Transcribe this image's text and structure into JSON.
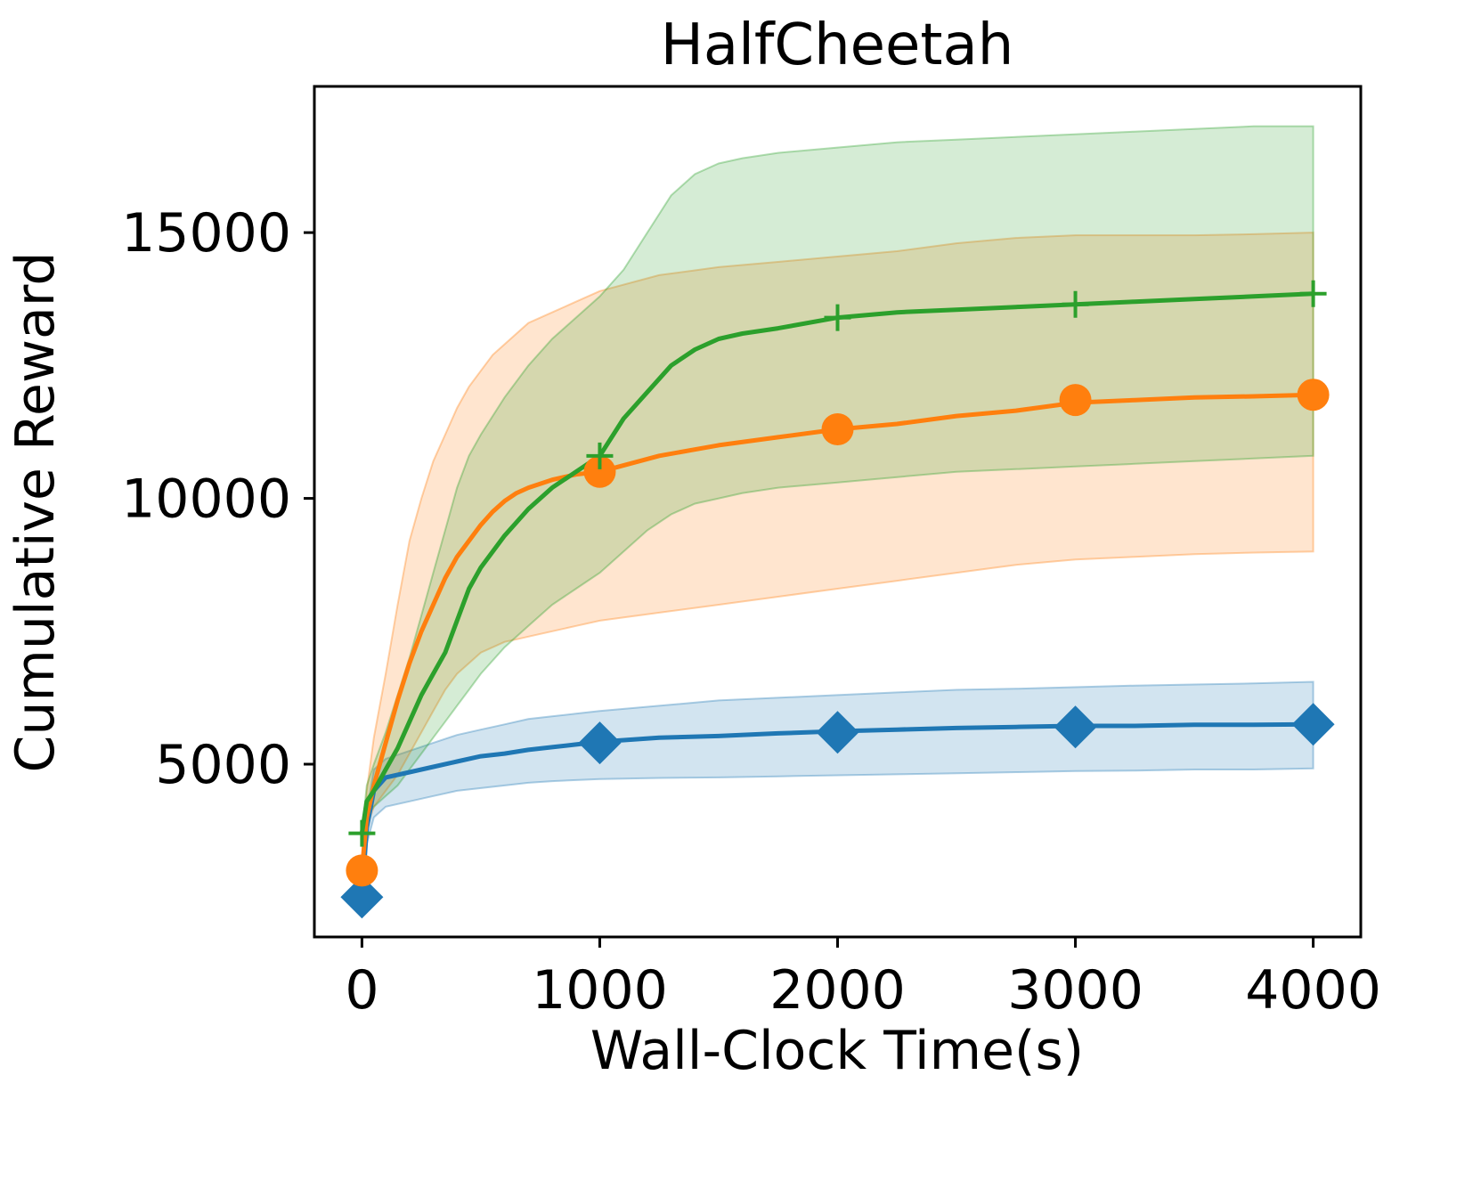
{
  "chart_data": {
    "type": "line",
    "title": "HalfCheetah",
    "xlabel": "Wall-Clock Time(s)",
    "ylabel": "Cumulative Reward",
    "xlim": [
      -200,
      4200
    ],
    "ylim": [
      1750,
      17750
    ],
    "xticks": [
      0,
      1000,
      2000,
      3000,
      4000
    ],
    "xtick_labels": [
      "0",
      "1000",
      "2000",
      "3000",
      "4000"
    ],
    "yticks": [
      5000,
      10000,
      15000
    ],
    "ytick_labels": [
      "5000",
      "10000",
      "15000"
    ],
    "grid": false,
    "legend": "none",
    "series": [
      {
        "name": "blue",
        "color": "#1f77b4",
        "marker": "diamond",
        "x": [
          0,
          20,
          50,
          100,
          200,
          300,
          400,
          500,
          600,
          700,
          800,
          900,
          1000,
          1250,
          1500,
          1750,
          2000,
          2250,
          2500,
          2750,
          3000,
          3250,
          3500,
          3750,
          4000
        ],
        "mean": [
          2500,
          3800,
          4500,
          4750,
          4850,
          4950,
          5050,
          5150,
          5200,
          5270,
          5320,
          5370,
          5420,
          5500,
          5530,
          5580,
          5620,
          5650,
          5680,
          5700,
          5720,
          5720,
          5740,
          5740,
          5750
        ],
        "lower": [
          2500,
          3500,
          4000,
          4200,
          4300,
          4400,
          4500,
          4550,
          4600,
          4650,
          4680,
          4700,
          4720,
          4740,
          4750,
          4770,
          4790,
          4810,
          4830,
          4850,
          4870,
          4880,
          4900,
          4900,
          4920
        ],
        "upper": [
          2500,
          4100,
          4900,
          5100,
          5250,
          5400,
          5550,
          5650,
          5750,
          5850,
          5900,
          5950,
          6000,
          6100,
          6200,
          6250,
          6300,
          6350,
          6400,
          6420,
          6450,
          6480,
          6500,
          6520,
          6550
        ],
        "marker_x": [
          0,
          1000,
          2000,
          3000,
          4000
        ],
        "marker_y": [
          2500,
          5400,
          5600,
          5700,
          5750
        ]
      },
      {
        "name": "orange",
        "color": "#ff7f0e",
        "marker": "circle",
        "x": [
          0,
          20,
          50,
          100,
          150,
          200,
          250,
          300,
          350,
          400,
          450,
          500,
          550,
          600,
          650,
          700,
          800,
          900,
          1000,
          1250,
          1500,
          1750,
          2000,
          2250,
          2500,
          2750,
          3000,
          3250,
          3500,
          3750,
          4000
        ],
        "mean": [
          3000,
          4000,
          4600,
          5400,
          6200,
          6900,
          7500,
          8000,
          8500,
          8900,
          9200,
          9500,
          9750,
          9950,
          10100,
          10200,
          10350,
          10450,
          10500,
          10800,
          11000,
          11150,
          11300,
          11400,
          11550,
          11650,
          11800,
          11850,
          11900,
          11920,
          11950
        ],
        "lower": [
          3000,
          3800,
          4200,
          4500,
          4800,
          5200,
          5600,
          6000,
          6400,
          6700,
          6900,
          7100,
          7200,
          7300,
          7350,
          7400,
          7500,
          7600,
          7700,
          7850,
          8000,
          8150,
          8300,
          8450,
          8600,
          8750,
          8850,
          8900,
          8950,
          8980,
          9000
        ],
        "upper": [
          3000,
          4500,
          5500,
          6700,
          8000,
          9200,
          10000,
          10700,
          11200,
          11700,
          12100,
          12400,
          12700,
          12900,
          13100,
          13300,
          13500,
          13700,
          13900,
          14200,
          14350,
          14450,
          14550,
          14650,
          14800,
          14900,
          14950,
          14950,
          14950,
          14970,
          15000
        ],
        "marker_x": [
          0,
          1000,
          2000,
          3000,
          4000
        ],
        "marker_y": [
          3000,
          10500,
          11300,
          11850,
          11950
        ]
      },
      {
        "name": "green",
        "color": "#2ca02c",
        "marker": "plus",
        "x": [
          0,
          20,
          50,
          100,
          150,
          200,
          250,
          300,
          350,
          400,
          450,
          500,
          600,
          700,
          800,
          900,
          1000,
          1100,
          1200,
          1300,
          1400,
          1500,
          1600,
          1750,
          2000,
          2250,
          2500,
          2750,
          3000,
          3250,
          3500,
          3750,
          4000
        ],
        "mean": [
          3700,
          4300,
          4500,
          4900,
          5300,
          5800,
          6300,
          6700,
          7100,
          7700,
          8300,
          8700,
          9300,
          9800,
          10200,
          10500,
          10800,
          11500,
          12000,
          12500,
          12800,
          13000,
          13100,
          13200,
          13400,
          13500,
          13550,
          13600,
          13650,
          13700,
          13750,
          13800,
          13850
        ],
        "lower": [
          3700,
          4000,
          4200,
          4400,
          4600,
          4900,
          5200,
          5500,
          5800,
          6100,
          6400,
          6700,
          7200,
          7600,
          8000,
          8300,
          8600,
          9000,
          9400,
          9700,
          9900,
          10000,
          10100,
          10200,
          10300,
          10400,
          10500,
          10550,
          10600,
          10650,
          10700,
          10750,
          10800
        ],
        "upper": [
          3700,
          4600,
          5000,
          5600,
          6300,
          7000,
          7800,
          8600,
          9400,
          10200,
          10800,
          11200,
          11900,
          12500,
          13000,
          13400,
          13800,
          14300,
          15000,
          15700,
          16100,
          16300,
          16400,
          16500,
          16600,
          16700,
          16750,
          16800,
          16850,
          16900,
          16950,
          17000,
          17000
        ],
        "marker_x": [
          0,
          1000,
          2000,
          3000,
          4000
        ],
        "marker_y": [
          3700,
          10800,
          13400,
          13650,
          13850
        ]
      }
    ]
  }
}
